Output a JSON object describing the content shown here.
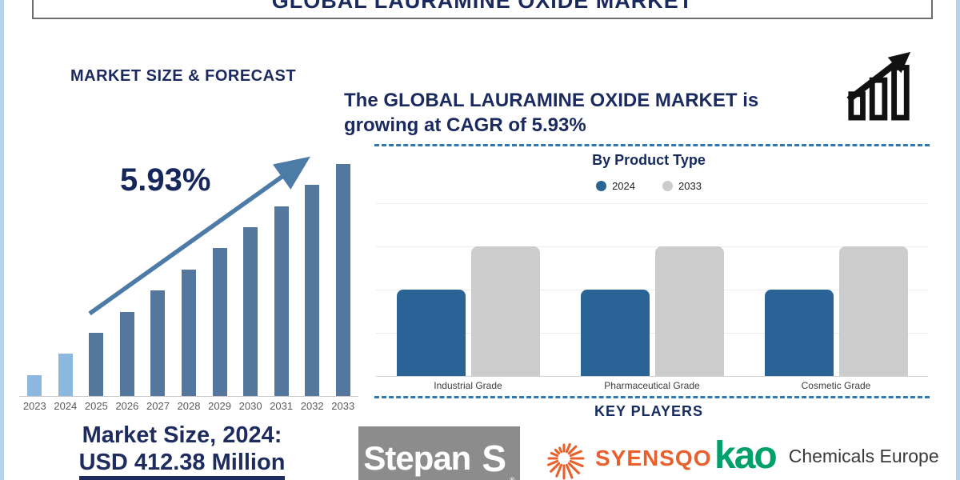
{
  "page_title": "GLOBAL LAURAMINE OXIDE MARKET",
  "left_panel": {
    "heading": "MARKET SIZE & FORECAST",
    "cagr_label": "5.93%",
    "market_size_line1": "Market Size, 2024:",
    "market_size_line2": "USD 412.38 Million"
  },
  "right_panel": {
    "headline_line1": "The GLOBAL LAURAMINE OXIDE MARKET is",
    "headline_line2": "growing at CAGR of 5.93%",
    "by_product_title": "By Product Type",
    "key_players_title": "KEY PLAYERS",
    "players": {
      "stepan": {
        "name": "Stepan",
        "monogram": "S",
        "reg_mark": "®"
      },
      "syensqo": {
        "name": "SYENSQO"
      },
      "kao": {
        "name": "kao",
        "suffix": "Chemicals Europe"
      }
    }
  },
  "chart_data": [
    {
      "type": "bar",
      "title": "MARKET SIZE & FORECAST",
      "categories": [
        "2023",
        "2024",
        "2025",
        "2026",
        "2027",
        "2028",
        "2029",
        "2030",
        "2031",
        "2032",
        "2033"
      ],
      "values": [
        1,
        2,
        3,
        4,
        5,
        6,
        7,
        8,
        9,
        10,
        11
      ],
      "values_note": "no y-axis shown; bars grow linearly, values are relative units",
      "annotation": "5.93%",
      "known_values": {
        "market_size_2024_usd_million": 412.38,
        "cagr_percent": 5.93
      },
      "legend": "none",
      "grid": "off"
    },
    {
      "type": "grouped-bar",
      "title": "By Product Type",
      "categories": [
        "Industrial Grade",
        "Pharmaceutical Grade",
        "Cosmetic Grade"
      ],
      "series": [
        {
          "name": "2024",
          "color": "#2a6496",
          "values": [
            2,
            2,
            2
          ]
        },
        {
          "name": "2033",
          "color": "#cccccc",
          "values": [
            3,
            3,
            3
          ]
        }
      ],
      "values_note": "no y-axis labels; values in horizontal-gridline units (relative)",
      "ylim": [
        0,
        4
      ],
      "grid": "horizontal",
      "legend_position": "top-center"
    }
  ],
  "colors": {
    "navy_text": "#1b2a5e",
    "forecast_bar_light": "#8cb8e0",
    "forecast_bar_dark": "#54779e",
    "arrow_blue": "#4d7ba7",
    "dashed_separator": "#2e78b5",
    "page_border": "#b7d3eb",
    "bar_2024": "#2a6496",
    "bar_2033": "#cccccc",
    "stepan_gray": "#8c8c8c",
    "syensqo_orange": "#e8602c",
    "kao_green": "#00a06d",
    "growth_icon": "#111111"
  }
}
